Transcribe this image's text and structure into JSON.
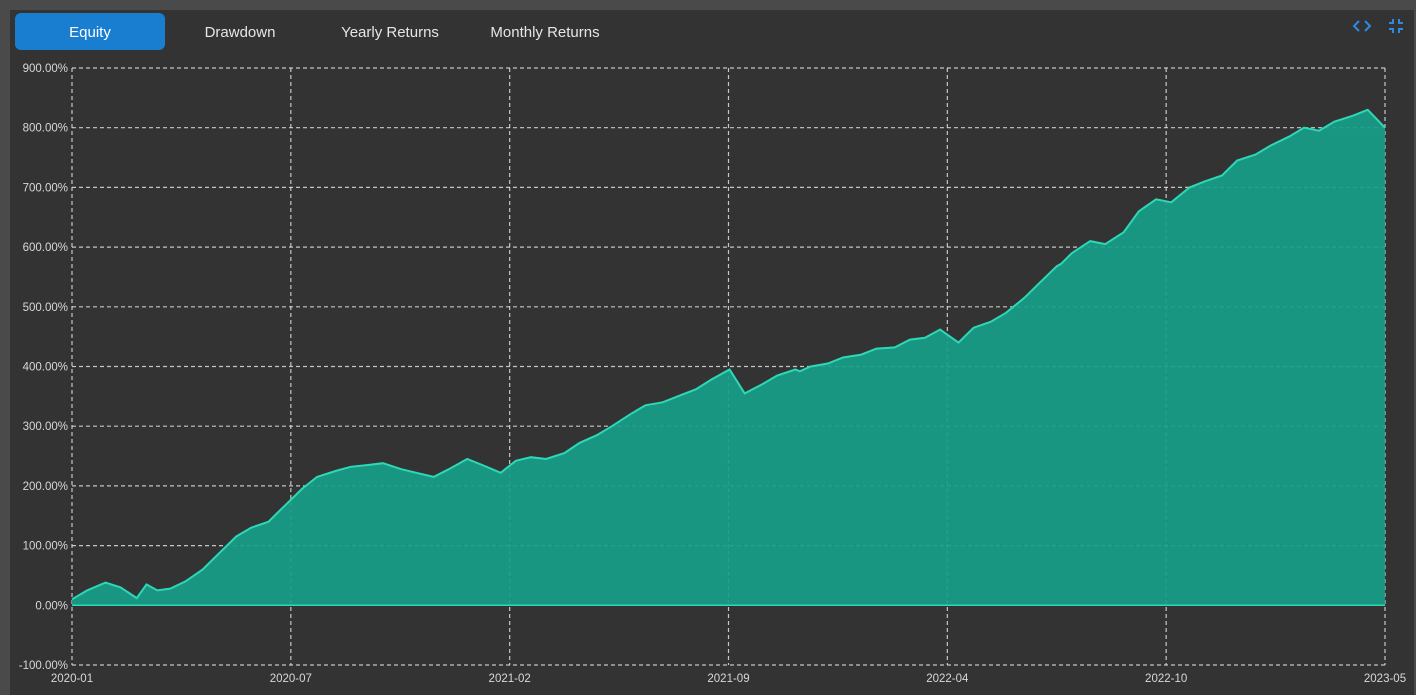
{
  "tabs": [
    {
      "label": "Equity",
      "active": true
    },
    {
      "label": "Drawdown",
      "active": false
    },
    {
      "label": "Yearly Returns",
      "active": false
    },
    {
      "label": "Monthly Returns",
      "active": false
    }
  ],
  "icons": [
    "code-brackets-icon",
    "collapse-icon"
  ],
  "colors": {
    "accent": "#1a7ed0",
    "area_fill": "#179e88",
    "line": "#2cd8b6",
    "grid": "#e0e0e0",
    "background": "#333333"
  },
  "chart_data": {
    "type": "area",
    "title": "",
    "xlabel": "",
    "ylabel": "",
    "grid": true,
    "y_tick_labels": [
      "900.00%",
      "800.00%",
      "700.00%",
      "600.00%",
      "500.00%",
      "400.00%",
      "300.00%",
      "200.00%",
      "100.00%",
      "0.00%",
      "-100.00%"
    ],
    "x_tick_labels": [
      "2020-01",
      "2020-07",
      "2021-02",
      "2021-09",
      "2022-04",
      "2022-10",
      "2023-05"
    ],
    "ylim": [
      -100,
      900
    ],
    "xlim": [
      "2020-01-01",
      "2023-05-01"
    ],
    "series": [
      {
        "x": [
          "2020-01-01",
          "2020-01-15",
          "2020-02-01",
          "2020-02-15",
          "2020-03-01",
          "2020-03-10",
          "2020-03-20",
          "2020-04-01",
          "2020-04-15",
          "2020-05-01",
          "2020-05-15",
          "2020-06-01",
          "2020-06-15",
          "2020-07-01",
          "2020-07-15",
          "2020-08-01",
          "2020-08-15",
          "2020-09-01",
          "2020-09-15",
          "2020-10-01",
          "2020-10-15",
          "2020-11-01",
          "2020-11-15",
          "2020-12-01",
          "2020-12-15",
          "2021-01-01",
          "2021-01-15",
          "2021-02-01",
          "2021-02-15",
          "2021-03-01",
          "2021-03-15",
          "2021-04-01",
          "2021-04-15",
          "2021-05-01",
          "2021-05-15",
          "2021-06-01",
          "2021-06-15",
          "2021-07-01",
          "2021-07-15",
          "2021-08-01",
          "2021-08-15",
          "2021-09-01",
          "2021-09-15",
          "2021-10-01",
          "2021-10-15",
          "2021-11-01",
          "2021-11-05",
          "2021-11-15",
          "2021-12-01",
          "2021-12-15",
          "2022-01-01",
          "2022-01-15",
          "2022-02-01",
          "2022-02-15",
          "2022-03-01",
          "2022-03-15",
          "2022-04-01",
          "2022-04-15",
          "2022-05-01",
          "2022-05-15",
          "2022-06-01",
          "2022-06-15",
          "2022-07-01",
          "2022-07-05",
          "2022-07-15",
          "2022-08-01",
          "2022-08-15",
          "2022-09-01",
          "2022-09-15",
          "2022-10-01",
          "2022-10-15",
          "2022-11-01",
          "2022-11-15",
          "2022-12-01",
          "2022-12-15",
          "2023-01-01",
          "2023-01-15",
          "2023-02-01",
          "2023-02-15",
          "2023-03-01",
          "2023-03-15",
          "2023-04-01",
          "2023-04-15",
          "2023-05-01"
        ],
        "y": [
          10,
          25,
          38,
          30,
          12,
          35,
          25,
          28,
          40,
          60,
          85,
          115,
          130,
          140,
          165,
          195,
          215,
          225,
          232,
          235,
          238,
          228,
          222,
          215,
          228,
          245,
          235,
          222,
          242,
          248,
          245,
          255,
          272,
          285,
          300,
          320,
          335,
          340,
          350,
          362,
          378,
          395,
          355,
          370,
          385,
          395,
          392,
          400,
          405,
          415,
          420,
          430,
          432,
          445,
          448,
          462,
          440,
          465,
          475,
          490,
          515,
          540,
          568,
          572,
          590,
          610,
          605,
          625,
          660,
          680,
          675,
          700,
          710,
          720,
          745,
          755,
          770,
          785,
          800,
          795,
          810,
          820,
          830,
          800
        ]
      }
    ]
  }
}
